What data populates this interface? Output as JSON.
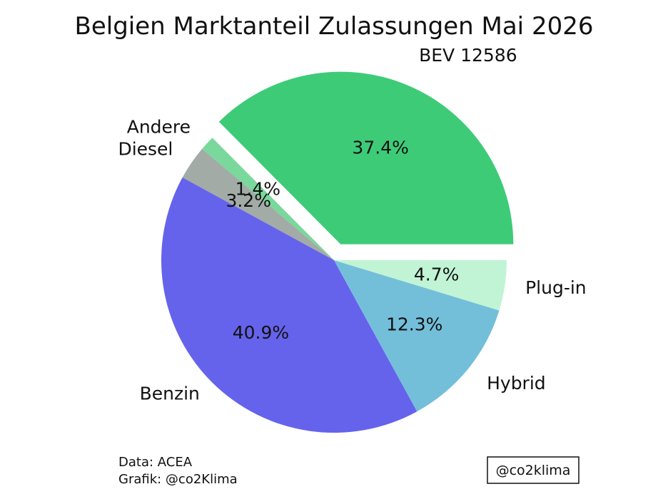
{
  "chart_data": {
    "type": "pie",
    "title": "Belgien Marktanteil Zulassungen Mai 2026",
    "slices": [
      {
        "label": "BEV 12586",
        "pct_label": "37.4%",
        "value": 37.4,
        "color": "#3ecb78",
        "explode": true
      },
      {
        "label": "Andere",
        "pct_label": "1.4%",
        "value": 1.4,
        "color": "#7ad89c"
      },
      {
        "label": "Diesel",
        "pct_label": "3.2%",
        "value": 3.2,
        "color": "#a3aba6"
      },
      {
        "label": "Benzin",
        "pct_label": "40.9%",
        "value": 40.9,
        "color": "#6563eb"
      },
      {
        "label": "Hybrid",
        "pct_label": "12.3%",
        "value": 12.3,
        "color": "#73bfda"
      },
      {
        "label": "Plug-in",
        "pct_label": "4.7%",
        "value": 4.7,
        "color": "#c0f4d4"
      }
    ],
    "start_angle_deg": 0,
    "direction": "counterclockwise"
  },
  "credits": {
    "line1": "Data: ACEA",
    "line2": "Grafik: @co2Klima",
    "handle": "@co2klima"
  }
}
